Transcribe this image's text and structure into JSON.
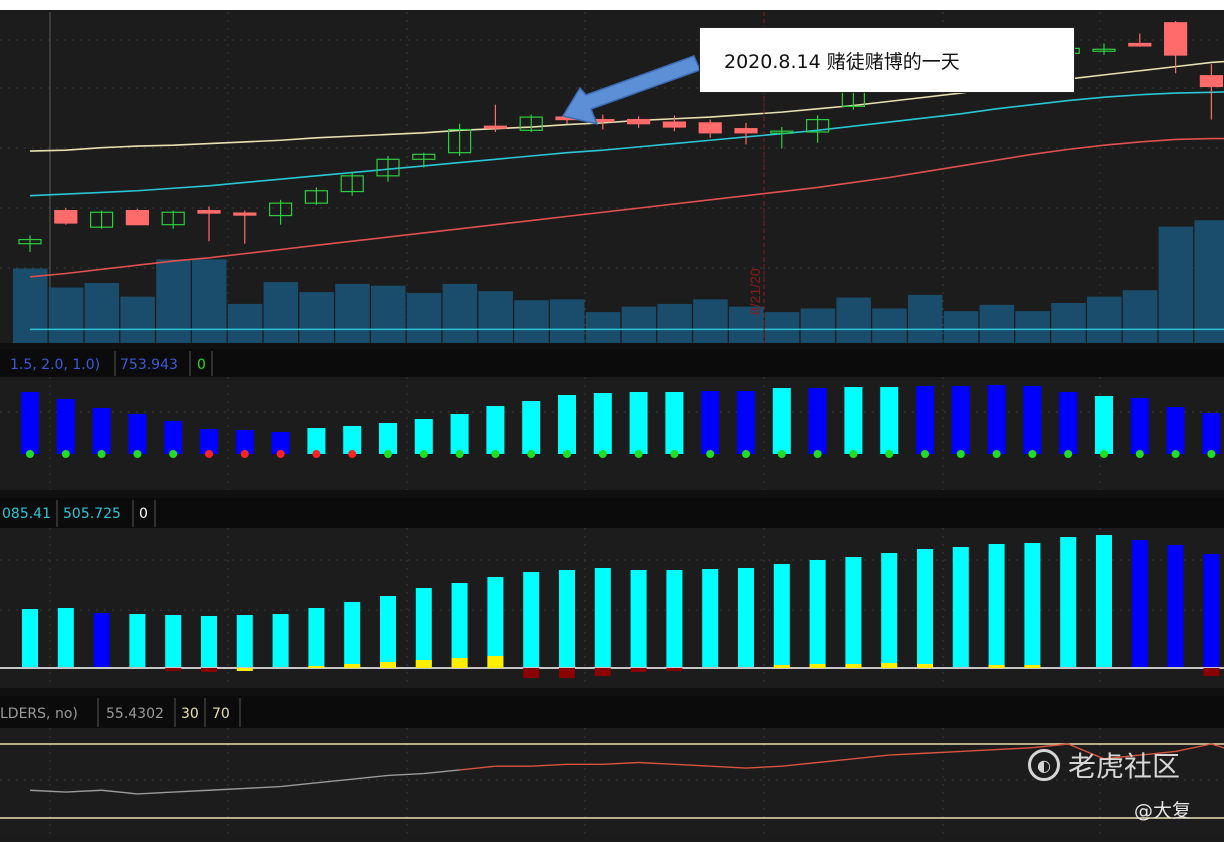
{
  "annotation": {
    "text": "2020.8.14  赌徒赌博的一天"
  },
  "date_marker": {
    "label": "8/21/20"
  },
  "panels": {
    "indicator1": {
      "params": "1.5, 2.0, 1.0)",
      "value": "753.943",
      "zero": "0"
    },
    "indicator2": {
      "prefix_value": "085.41",
      "value": "505.725",
      "zero": "0"
    },
    "rsi": {
      "params": "LDERS, no)",
      "value": "55.4302",
      "lower": "30",
      "upper": "70"
    }
  },
  "watermark": {
    "brand": "老虎社区",
    "author": "@大复",
    "icon": "tiger-logo-icon"
  },
  "colors": {
    "up_candle": "#2ecc40",
    "down_candle": "#ff6b6b",
    "volume": "#1a4d6b",
    "ma_fast": "#e8e0b0",
    "ma_mid": "#2ac6d6",
    "ma_slow": "#e05050",
    "hist_cyan": "#00ffff",
    "hist_blue": "#0000ff",
    "dot_green": "#22dd22",
    "dot_red": "#ff2222",
    "bar_yellow": "#ffee00",
    "bar_darkred": "#8b0000",
    "callout_arrow": "#5b8fd6"
  },
  "chart_data": [
    {
      "type": "candlestick",
      "candles": [
        {
          "o": 100,
          "h": 101,
          "l": 99,
          "c": 100.5
        },
        {
          "o": 104,
          "h": 104.3,
          "l": 102.3,
          "c": 102.5
        },
        {
          "o": 102,
          "h": 104,
          "l": 101.8,
          "c": 103.8
        },
        {
          "o": 104,
          "h": 104.2,
          "l": 102.3,
          "c": 102.3
        },
        {
          "o": 102.3,
          "h": 104,
          "l": 101.8,
          "c": 103.8
        },
        {
          "o": 104,
          "h": 104.5,
          "l": 100.3,
          "c": 103.7
        },
        {
          "o": 103.7,
          "h": 104,
          "l": 100,
          "c": 103.5
        },
        {
          "o": 103.4,
          "h": 105.3,
          "l": 102.3,
          "c": 104.9
        },
        {
          "o": 104.9,
          "h": 106.8,
          "l": 104.7,
          "c": 106.4
        },
        {
          "o": 106.3,
          "h": 108.7,
          "l": 105.8,
          "c": 108.2
        },
        {
          "o": 108.2,
          "h": 110.6,
          "l": 107.5,
          "c": 110.2
        },
        {
          "o": 110.2,
          "h": 111,
          "l": 109.2,
          "c": 110.8
        },
        {
          "o": 111,
          "h": 114.5,
          "l": 110.6,
          "c": 113.8
        },
        {
          "o": 114.2,
          "h": 116.8,
          "l": 113.5,
          "c": 114.0
        },
        {
          "o": 113.7,
          "h": 115.6,
          "l": 113.5,
          "c": 115.3
        },
        {
          "o": 115.3,
          "h": 115.9,
          "l": 114.5,
          "c": 115.0
        },
        {
          "o": 115.0,
          "h": 115.6,
          "l": 113.8,
          "c": 114.8
        },
        {
          "o": 115.0,
          "h": 115.4,
          "l": 114.0,
          "c": 114.5
        },
        {
          "o": 114.7,
          "h": 115.5,
          "l": 113.6,
          "c": 114.1
        },
        {
          "o": 114.6,
          "h": 115.0,
          "l": 112.8,
          "c": 113.4
        },
        {
          "o": 113.9,
          "h": 114.6,
          "l": 112.0,
          "c": 113.4
        },
        {
          "o": 113.5,
          "h": 114.1,
          "l": 111.5,
          "c": 113.6
        },
        {
          "o": 113.5,
          "h": 115.5,
          "l": 112.2,
          "c": 115.0
        },
        {
          "o": 116.6,
          "h": 122.0,
          "l": 116.2,
          "c": 120.2
        },
        {
          "o": 120.0,
          "h": 121.6,
          "l": 118.6,
          "c": 119.2
        },
        {
          "o": 119.5,
          "h": 121.0,
          "l": 118.3,
          "c": 120.0
        },
        {
          "o": 119.8,
          "h": 122.5,
          "l": 119.3,
          "c": 121.8
        },
        {
          "o": 121.8,
          "h": 123.0,
          "l": 121.4,
          "c": 122.5
        },
        {
          "o": 122.5,
          "h": 123.2,
          "l": 121.5,
          "c": 123.0
        },
        {
          "o": 123.0,
          "h": 124.0,
          "l": 122.4,
          "c": 123.6
        },
        {
          "o": 123.5,
          "h": 124.2,
          "l": 122.8,
          "c": 123.5
        },
        {
          "o": 124.2,
          "h": 125.4,
          "l": 123.8,
          "c": 123.9
        },
        {
          "o": 126.7,
          "h": 126.9,
          "l": 120.6,
          "c": 122.8
        },
        {
          "o": 120.3,
          "h": 121.7,
          "l": 115.0,
          "c": 119.0
        },
        {
          "o": 119.0,
          "h": 120.3,
          "l": 114.4,
          "c": 115.1
        },
        {
          "o": 114.7,
          "h": 119.3,
          "l": 112.1,
          "c": 117.8
        },
        {
          "o": 118.0,
          "h": 119.3,
          "l": 114.9,
          "c": 115.5
        }
      ],
      "ma_fast": [
        111.2,
        111.3,
        111.6,
        111.8,
        111.9,
        112.1,
        112.3,
        112.5,
        112.8,
        113.0,
        113.2,
        113.4,
        113.7,
        113.9,
        114.1,
        114.4,
        114.6,
        114.9,
        115.1,
        115.3,
        115.6,
        115.9,
        116.3,
        116.7,
        117.2,
        117.7,
        118.2,
        118.8,
        119.3,
        119.9,
        120.4,
        120.9,
        121.4,
        121.9,
        122.2,
        122.4,
        122.5
      ],
      "ma_mid": [
        105.8,
        106.0,
        106.2,
        106.4,
        106.7,
        107.0,
        107.4,
        107.8,
        108.2,
        108.6,
        109.0,
        109.4,
        109.8,
        110.2,
        110.6,
        111.0,
        111.3,
        111.7,
        112.1,
        112.5,
        112.9,
        113.3,
        113.7,
        114.2,
        114.7,
        115.2,
        115.7,
        116.3,
        116.8,
        117.3,
        117.7,
        118.0,
        118.2,
        118.3,
        118.4,
        118.4,
        118.3
      ],
      "ma_slow": [
        96.0,
        96.4,
        96.9,
        97.4,
        97.9,
        98.3,
        98.8,
        99.3,
        99.8,
        100.3,
        100.8,
        101.3,
        101.8,
        102.3,
        102.8,
        103.3,
        103.8,
        104.3,
        104.8,
        105.3,
        105.8,
        106.3,
        106.8,
        107.4,
        108.0,
        108.7,
        109.4,
        110.1,
        110.8,
        111.4,
        111.9,
        112.3,
        112.6,
        112.7,
        112.7,
        112.6,
        112.4
      ],
      "volume": [
        82,
        61,
        66,
        51,
        92,
        92,
        43,
        67,
        56,
        65,
        63,
        55,
        65,
        57,
        47,
        48,
        34,
        40,
        43,
        48,
        40,
        34,
        38,
        50,
        38,
        53,
        35,
        42,
        35,
        44,
        51,
        58,
        128,
        135,
        162,
        103,
        101
      ],
      "volume_avg": [
        15,
        15,
        15,
        15,
        15,
        15,
        15,
        15,
        15,
        15,
        15,
        15,
        15,
        15,
        15,
        15,
        15,
        15,
        15,
        15,
        15,
        15,
        15,
        15,
        15,
        15,
        15,
        15,
        15,
        15,
        15,
        15,
        15,
        15,
        15,
        15,
        15
      ]
    },
    {
      "type": "bar",
      "series": [
        {
          "values": [
            62,
            55,
            46,
            40,
            33,
            25,
            24,
            22,
            26,
            28,
            31,
            35,
            40,
            48,
            53,
            59,
            61,
            62,
            62,
            63,
            63,
            66,
            66,
            67,
            67,
            68,
            68,
            69,
            68,
            62,
            58,
            56,
            47,
            41,
            24,
            16,
            6
          ]
        }
      ],
      "bar_colors": [
        "blue",
        "blue",
        "blue",
        "blue",
        "blue",
        "blue",
        "blue",
        "blue",
        "cyan",
        "cyan",
        "cyan",
        "cyan",
        "cyan",
        "cyan",
        "cyan",
        "cyan",
        "cyan",
        "cyan",
        "cyan",
        "blue",
        "blue",
        "cyan",
        "blue",
        "cyan",
        "cyan",
        "blue",
        "blue",
        "blue",
        "blue",
        "blue",
        "cyan",
        "blue",
        "blue",
        "blue",
        "blue",
        "blue",
        "blue"
      ],
      "dot_colors": [
        "green",
        "green",
        "green",
        "green",
        "green",
        "red",
        "red",
        "red",
        "red",
        "red",
        "green",
        "green",
        "green",
        "green",
        "green",
        "green",
        "green",
        "green",
        "green",
        "green",
        "green",
        "green",
        "green",
        "green",
        "green",
        "green",
        "green",
        "green",
        "green",
        "green",
        "green",
        "green",
        "green",
        "green",
        "green",
        "green",
        "green"
      ]
    },
    {
      "type": "bar",
      "series": [
        {
          "values": [
            59,
            60,
            55,
            54,
            53,
            52,
            53,
            54,
            60,
            66,
            72,
            80,
            85,
            91,
            96,
            98,
            100,
            98,
            98,
            99,
            100,
            104,
            108,
            111,
            115,
            119,
            121,
            124,
            125,
            131,
            133,
            128,
            123,
            114,
            109,
            104,
            98
          ]
        },
        {
          "values": [
            0,
            0,
            0,
            0,
            0,
            0,
            -3,
            0,
            2,
            4,
            6,
            8,
            10,
            12,
            0,
            0,
            0,
            0,
            0,
            0,
            0,
            3,
            4,
            4,
            5,
            4,
            0,
            3,
            3,
            0,
            0,
            0,
            0,
            0,
            0,
            0,
            0
          ]
        },
        {
          "values": [
            0,
            0,
            0,
            0,
            -3,
            -4,
            0,
            0,
            0,
            0,
            0,
            0,
            0,
            0,
            -10,
            -10,
            -8,
            -4,
            -3,
            0,
            0,
            0,
            0,
            0,
            0,
            0,
            0,
            0,
            0,
            0,
            0,
            0,
            0,
            -8,
            -10,
            -12,
            -14
          ]
        }
      ],
      "bar_colors": [
        "cyan",
        "cyan",
        "blue",
        "cyan",
        "cyan",
        "cyan",
        "cyan",
        "cyan",
        "cyan",
        "cyan",
        "cyan",
        "cyan",
        "cyan",
        "cyan",
        "cyan",
        "cyan",
        "cyan",
        "cyan",
        "cyan",
        "cyan",
        "cyan",
        "cyan",
        "cyan",
        "cyan",
        "cyan",
        "cyan",
        "cyan",
        "cyan",
        "cyan",
        "cyan",
        "cyan",
        "blue",
        "blue",
        "blue",
        "cyan",
        "blue",
        "blue"
      ]
    },
    {
      "type": "line",
      "series": [
        {
          "values": [
            45,
            44,
            45,
            43,
            44,
            45,
            46,
            47,
            49,
            51,
            53,
            54,
            56,
            58,
            58,
            59,
            59,
            60,
            59,
            58,
            57,
            58,
            60,
            62,
            64,
            65,
            66,
            67,
            68,
            70,
            62,
            64,
            66,
            70,
            64,
            63,
            60
          ]
        }
      ],
      "ylim": [
        30,
        70
      ]
    }
  ]
}
